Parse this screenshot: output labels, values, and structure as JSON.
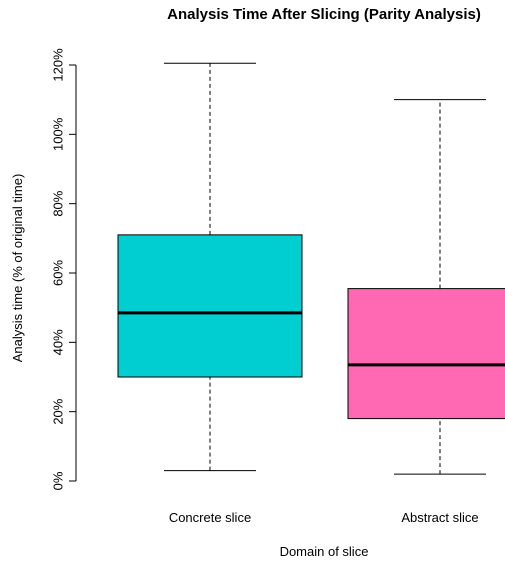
{
  "chart_data": {
    "type": "boxplot",
    "title": "Analysis Time After Slicing (Parity Analysis)",
    "xlabel": "Domain of slice",
    "ylabel": "Analysis time (% of original time)",
    "ylim": [
      0,
      120
    ],
    "y_ticks": [
      {
        "value": 0,
        "label": "0%"
      },
      {
        "value": 20,
        "label": "20%"
      },
      {
        "value": 40,
        "label": "40%"
      },
      {
        "value": 60,
        "label": "60%"
      },
      {
        "value": 80,
        "label": "80%"
      },
      {
        "value": 100,
        "label": "100%"
      },
      {
        "value": 120,
        "label": "120%"
      }
    ],
    "categories": [
      "Concrete slice",
      "Abstract slice"
    ],
    "boxes": [
      {
        "category": "Concrete slice",
        "min": 3,
        "q1": 30,
        "median": 48.5,
        "q3": 71,
        "max": 120.5,
        "color": "#00CED1"
      },
      {
        "category": "Abstract slice",
        "min": 2,
        "q1": 18,
        "median": 33.5,
        "q3": 55.5,
        "max": 110,
        "color": "#FF69B4"
      }
    ],
    "grid": false,
    "legend": "none"
  }
}
